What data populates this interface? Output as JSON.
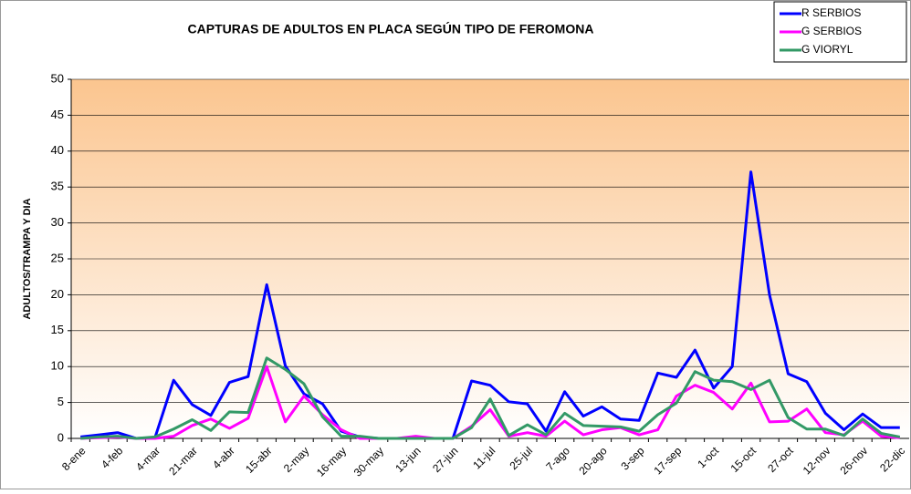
{
  "chart_data": {
    "type": "line",
    "title": "CAPTURAS DE ADULTOS EN PLACA SEGÚN TIPO DE FEROMONA",
    "ylabel": "ADULTOS/TRAMPA Y DIA",
    "categories": [
      "8-ene",
      null,
      "4-feb",
      null,
      "4-mar",
      null,
      "21-mar",
      null,
      "4-abr",
      null,
      "15-abr",
      null,
      "2-may",
      null,
      "16-may",
      null,
      "30-may",
      null,
      "13-jun",
      null,
      "27-jun",
      null,
      "11-jul",
      null,
      "25-jul",
      null,
      "7-ago",
      null,
      "20-ago",
      null,
      "3-sep",
      null,
      "17-sep",
      null,
      "1-oct",
      null,
      "15-oct",
      null,
      "27-oct",
      null,
      "12-nov",
      null,
      "26-nov",
      null,
      "22-dic"
    ],
    "series": [
      {
        "name": "R SERBIOS",
        "color": "#0000ff",
        "values": [
          0.2,
          0.5,
          0.8,
          0,
          0.1,
          8.1,
          4.7,
          3.2,
          7.8,
          8.6,
          21.4,
          10.1,
          6.2,
          4.8,
          1,
          0.2,
          0,
          0,
          0,
          0,
          0,
          8,
          7.4,
          5.1,
          4.8,
          1,
          6.5,
          3.1,
          4.4,
          2.7,
          2.5,
          9.1,
          8.5,
          12.3,
          7,
          10,
          37.1,
          20,
          9,
          7.9,
          3.5,
          1.2,
          3.4,
          1.5,
          1.5
        ]
      },
      {
        "name": "G SERBIOS",
        "color": "#ff00ff",
        "values": [
          0,
          0.1,
          0.2,
          0,
          0,
          0.3,
          1.8,
          2.7,
          1.4,
          2.8,
          10,
          2.3,
          5.9,
          3.3,
          1.2,
          0,
          0,
          0,
          0.3,
          0,
          0,
          1.7,
          4,
          0.3,
          0.8,
          0.3,
          2.4,
          0.5,
          1.2,
          1.5,
          0.5,
          1.2,
          5.9,
          7.4,
          6.4,
          4.1,
          7.7,
          2.3,
          2.4,
          4.1,
          0.8,
          0.5,
          2.4,
          0.3,
          0.1
        ]
      },
      {
        "name": "G VIORYL",
        "color": "#339966",
        "values": [
          0,
          0.2,
          0.3,
          0,
          0.2,
          1.3,
          2.6,
          1.1,
          3.7,
          3.6,
          11.2,
          9.6,
          7.6,
          3,
          0.3,
          0.3,
          0,
          0,
          0,
          0,
          0,
          1.5,
          5.5,
          0.4,
          1.9,
          0.5,
          3.5,
          1.8,
          1.7,
          1.6,
          1,
          3.3,
          4.9,
          9.3,
          8.1,
          7.9,
          6.8,
          8.1,
          2.9,
          1.3,
          1.3,
          0.4,
          2.7,
          0.7,
          0.2
        ]
      }
    ],
    "ylim": [
      0,
      50
    ],
    "yticks": [
      0,
      5,
      10,
      15,
      20,
      25,
      30,
      35,
      40,
      45,
      50
    ],
    "grid": true,
    "legend": "top-right"
  }
}
